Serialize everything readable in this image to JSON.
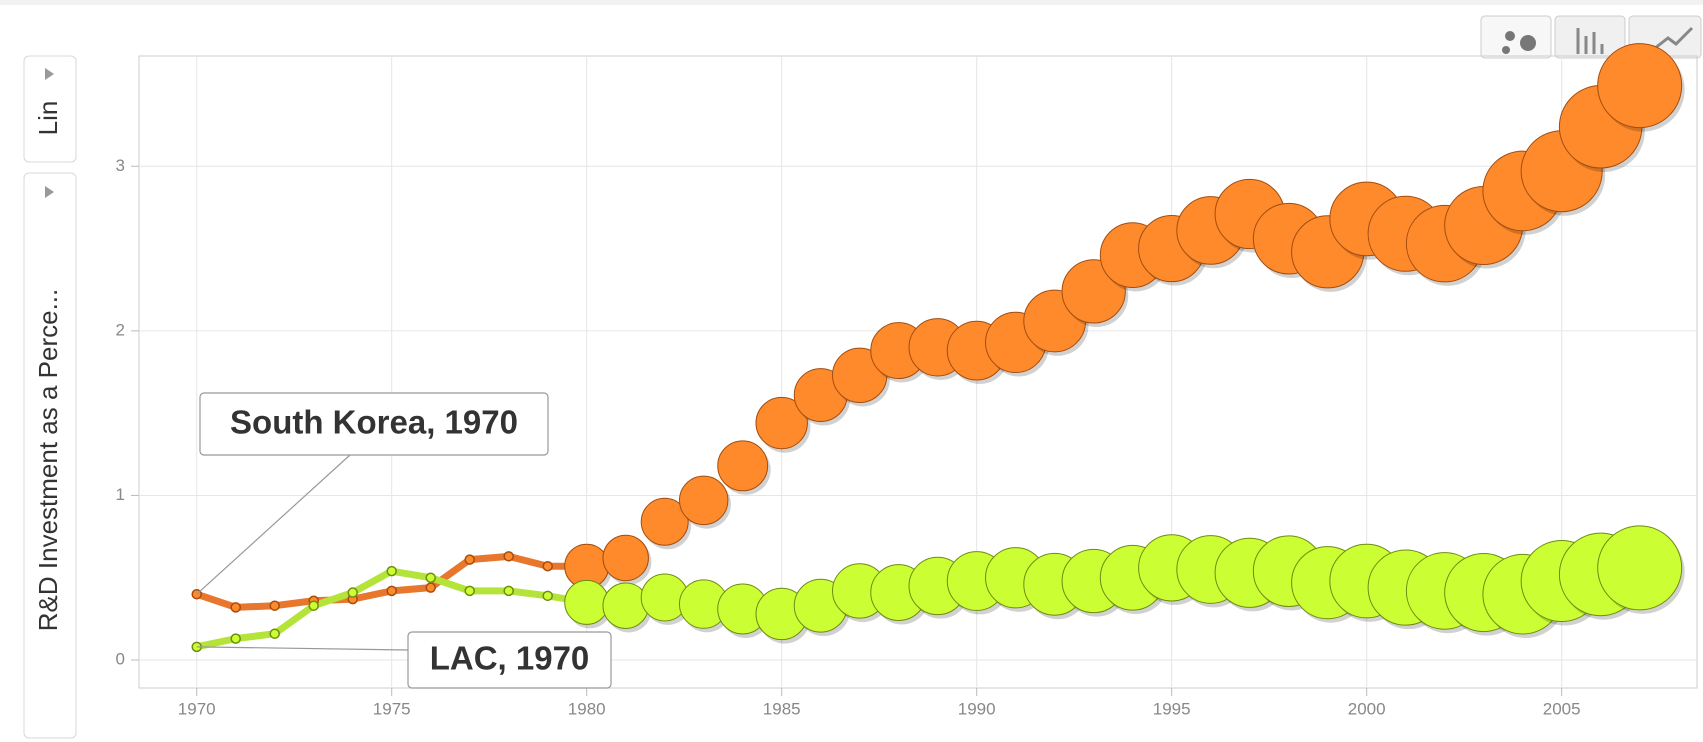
{
  "chart_data": {
    "type": "bubble_trail",
    "y_label": "R&D Investment as a Perce...",
    "scale_label": "Lin",
    "x": [
      1970,
      1971,
      1972,
      1973,
      1974,
      1975,
      1976,
      1977,
      1978,
      1979,
      1980,
      1981,
      1982,
      1983,
      1984,
      1985,
      1986,
      1987,
      1988,
      1989,
      1990,
      1991,
      1992,
      1993,
      1994,
      1995,
      1996,
      1997,
      1998,
      1999,
      2000,
      2001,
      2002,
      2003,
      2004,
      2005,
      2006,
      2007
    ],
    "series": [
      {
        "name": "South Korea",
        "color": "#ff8a2b",
        "line_color": "#e8762c",
        "stroke": "#a34d0f",
        "values": [
          0.4,
          0.32,
          0.33,
          0.36,
          0.37,
          0.42,
          0.44,
          0.61,
          0.63,
          0.57,
          0.57,
          0.62,
          0.84,
          0.97,
          1.18,
          1.44,
          1.61,
          1.73,
          1.88,
          1.9,
          1.88,
          1.93,
          2.06,
          2.24,
          2.46,
          2.5,
          2.61,
          2.71,
          2.56,
          2.48,
          2.68,
          2.59,
          2.53,
          2.64,
          2.85,
          2.97,
          3.24,
          3.49
        ]
      },
      {
        "name": "LAC",
        "color": "#ccff33",
        "line_color": "#b4e43a",
        "stroke": "#6e8c12",
        "values": [
          0.08,
          0.13,
          0.16,
          0.33,
          0.41,
          0.54,
          0.5,
          0.42,
          0.42,
          0.39,
          0.35,
          0.33,
          0.38,
          0.34,
          0.31,
          0.28,
          0.33,
          0.42,
          0.41,
          0.45,
          0.48,
          0.5,
          0.46,
          0.48,
          0.5,
          0.56,
          0.55,
          0.53,
          0.54,
          0.47,
          0.48,
          0.44,
          0.42,
          0.41,
          0.4,
          0.48,
          0.52,
          0.56
        ]
      }
    ],
    "annotations": [
      "South Korea, 1970",
      "LAC, 1970"
    ],
    "xlim": [
      1968.52,
      2008.47
    ],
    "ylim": [
      -0.17,
      3.67
    ],
    "xticks": [
      1970,
      1975,
      1980,
      1985,
      1990,
      1995,
      2000,
      2005
    ],
    "yticks": [
      0,
      1,
      2,
      3
    ],
    "grid": true
  }
}
